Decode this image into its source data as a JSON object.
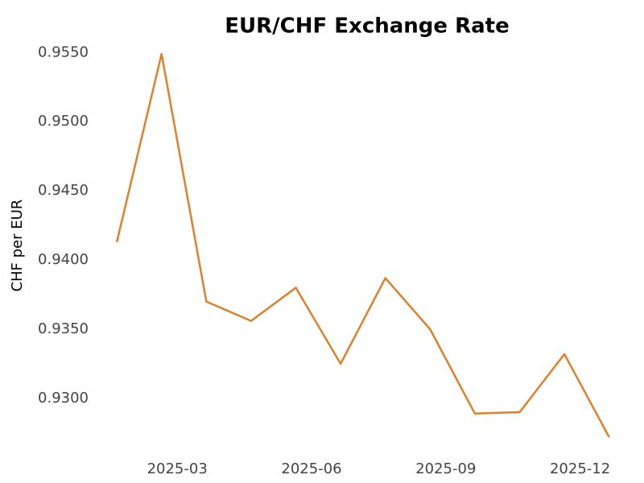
{
  "chart_data": {
    "type": "line",
    "title": "EUR/CHF Exchange Rate",
    "y_label": "CHF per EUR",
    "x": [
      "2025-01",
      "2025-02",
      "2025-03",
      "2025-04",
      "2025-05",
      "2025-06",
      "2025-07",
      "2025-08",
      "2025-09",
      "2025-10",
      "2025-11",
      "2025-12"
    ],
    "series": [
      {
        "name": "EUR/CHF",
        "color": "#e0802a",
        "values": [
          0.9413,
          0.9549,
          0.937,
          0.9356,
          0.938,
          0.9325,
          0.9387,
          0.935,
          0.9289,
          0.929,
          0.9332,
          0.9272
        ]
      }
    ],
    "ylim": [
      0.9265,
      0.9556
    ],
    "yticks": [
      {
        "value": 0.93,
        "label": "0.9300"
      },
      {
        "value": 0.935,
        "label": "0.9350"
      },
      {
        "value": 0.94,
        "label": "0.9400"
      },
      {
        "value": 0.945,
        "label": "0.9450"
      },
      {
        "value": 0.95,
        "label": "0.9500"
      },
      {
        "value": 0.955,
        "label": "0.9550"
      }
    ],
    "xticks": [
      "2025-03",
      "2025-06",
      "2025-09",
      "2025-12"
    ],
    "grid": false
  }
}
